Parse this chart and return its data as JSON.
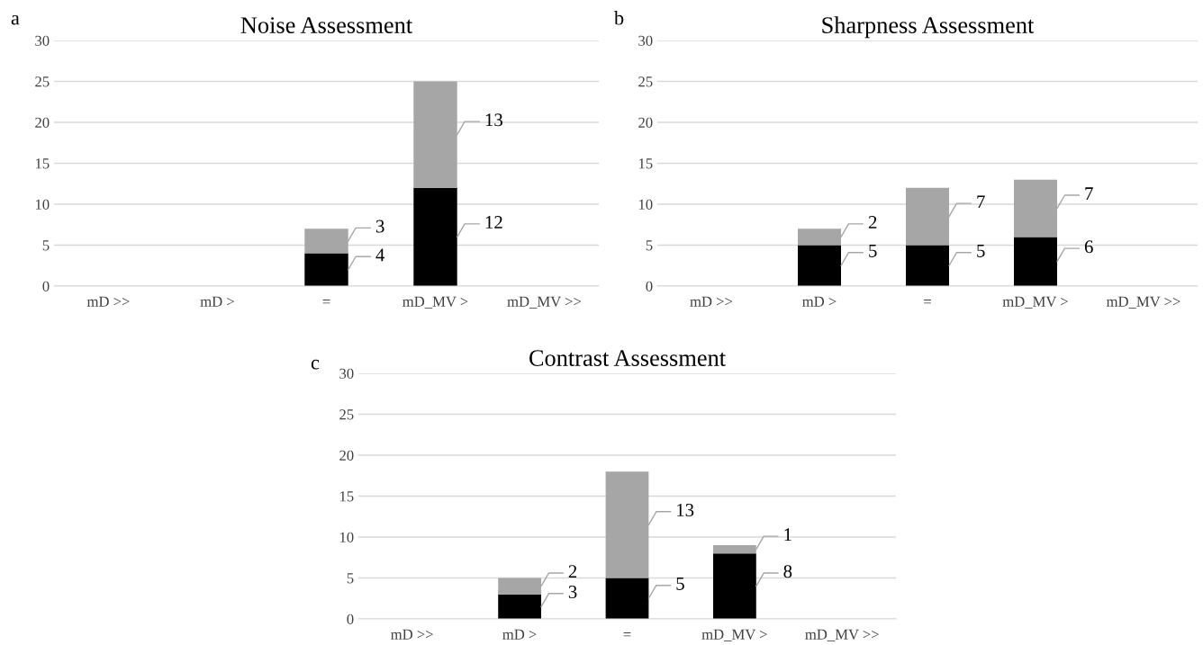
{
  "chart_data": [
    {
      "type": "bar",
      "title": "Noise Assessment",
      "annotations": [
        "a"
      ],
      "categories": [
        "mD >>",
        "mD >",
        "=",
        "mD_MV >",
        "mD_MV >>"
      ],
      "stacked": true,
      "ylim": [
        0,
        30
      ],
      "yticks": [
        0,
        5,
        10,
        15,
        20,
        25,
        30
      ],
      "grid": "y",
      "series": [
        {
          "color": "#000000",
          "values": [
            0,
            0,
            4,
            12,
            0
          ],
          "value_labels": [
            null,
            null,
            "4",
            "12",
            null
          ]
        },
        {
          "color": "#a6a6a6",
          "values": [
            0,
            0,
            3,
            13,
            0
          ],
          "value_labels": [
            null,
            null,
            "3",
            "13",
            null
          ]
        }
      ]
    },
    {
      "type": "bar",
      "title": "Sharpness Assessment",
      "annotations": [
        "b"
      ],
      "categories": [
        "mD >>",
        "mD >",
        "=",
        "mD_MV >",
        "mD_MV >>"
      ],
      "stacked": true,
      "ylim": [
        0,
        30
      ],
      "yticks": [
        0,
        5,
        10,
        15,
        20,
        25,
        30
      ],
      "grid": "y",
      "series": [
        {
          "color": "#000000",
          "values": [
            0,
            5,
            5,
            6,
            0
          ],
          "value_labels": [
            null,
            "5",
            "5",
            "6",
            null
          ]
        },
        {
          "color": "#a6a6a6",
          "values": [
            0,
            2,
            7,
            7,
            0
          ],
          "value_labels": [
            null,
            "2",
            "7",
            "7",
            null
          ]
        }
      ]
    },
    {
      "type": "bar",
      "title": "Contrast Assessment",
      "annotations": [
        "c"
      ],
      "categories": [
        "mD >>",
        "mD >",
        "=",
        "mD_MV >",
        "mD_MV >>"
      ],
      "stacked": true,
      "ylim": [
        0,
        30
      ],
      "yticks": [
        0,
        5,
        10,
        15,
        20,
        25,
        30
      ],
      "grid": "y",
      "series": [
        {
          "color": "#000000",
          "values": [
            0,
            3,
            5,
            8,
            0
          ],
          "value_labels": [
            null,
            "3",
            "5",
            "8",
            null
          ]
        },
        {
          "color": "#a6a6a6",
          "values": [
            0,
            2,
            13,
            1,
            0
          ],
          "value_labels": [
            null,
            "2",
            "13",
            "1",
            null
          ]
        }
      ]
    }
  ]
}
